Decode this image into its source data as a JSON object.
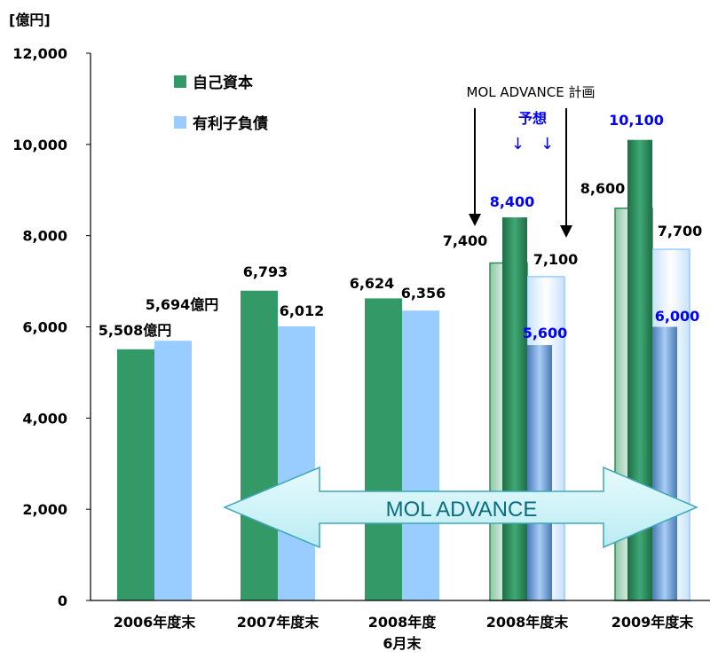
{
  "chart_data": {
    "type": "bar",
    "unit_label": "[億円]",
    "ylim": [
      0,
      12000
    ],
    "yticks": [
      "0",
      "2,000",
      "4,000",
      "6,000",
      "8,000",
      "10,000",
      "12,000"
    ],
    "ytick_values": [
      0,
      2000,
      4000,
      6000,
      8000,
      10000,
      12000
    ],
    "categories": [
      {
        "line1": "2006年度末",
        "line2": ""
      },
      {
        "line1": "2007年度末",
        "line2": ""
      },
      {
        "line1": "2008年度",
        "line2": "6月末"
      },
      {
        "line1": "2008年度末",
        "line2": ""
      },
      {
        "line1": "2009年度末",
        "line2": ""
      }
    ],
    "series": [
      {
        "name": "自己資本",
        "color": "#339966",
        "values": [
          5508,
          6793,
          6624,
          8400,
          10100
        ],
        "labels": [
          "5,508億円",
          "6,793",
          "6,624",
          "8,400",
          "10,100"
        ]
      },
      {
        "name": "有利子負債",
        "color": "#99ccff",
        "values": [
          5694,
          6012,
          6356,
          5600,
          6000
        ],
        "labels": [
          "5,694億円",
          "6,012",
          "6,356",
          "5,600",
          "6,000"
        ]
      }
    ],
    "plan_series": [
      {
        "name": "自己資本",
        "values": [
          null,
          null,
          null,
          7400,
          8600
        ],
        "labels": [
          "",
          "",
          "",
          "7,400",
          "8,600"
        ]
      },
      {
        "name": "有利子負債",
        "values": [
          null,
          null,
          null,
          7100,
          7700
        ],
        "labels": [
          "",
          "",
          "",
          "7,100",
          "7,700"
        ]
      }
    ],
    "forecast_label_color": "#0000ff",
    "annotations": {
      "plan_label": "MOL ADVANCE 計画",
      "forecast_label": "予想",
      "forecast_arrows": "↓　↓",
      "banner": "MOL ADVANCE"
    },
    "legend_position": "top-left",
    "grid": false
  }
}
